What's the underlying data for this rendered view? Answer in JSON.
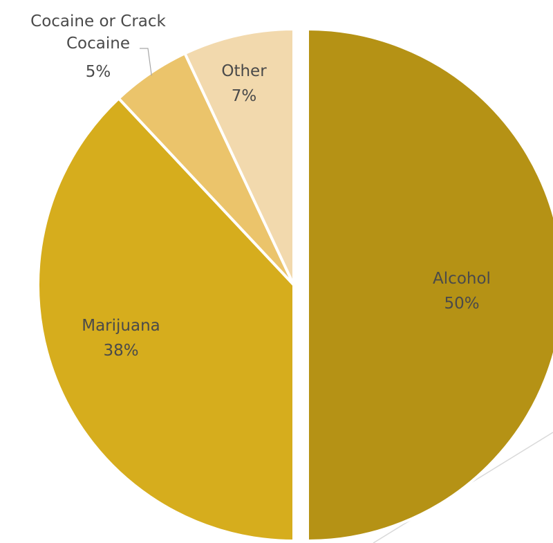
{
  "chart_data": {
    "type": "pie",
    "title": "",
    "start_angle_deg": 0,
    "direction": "clockwise",
    "slices": [
      {
        "label": "Alcohol",
        "value": 50,
        "value_label": "50%",
        "color": "#b59215",
        "exploded": true
      },
      {
        "label": "Marijuana",
        "value": 38,
        "value_label": "38%",
        "color": "#d6ad1d",
        "exploded": false
      },
      {
        "label": "Cocaine or Crack Cocaine",
        "label_lines": [
          "Cocaine or Crack",
          "Cocaine"
        ],
        "value": 5,
        "value_label": "5%",
        "color": "#ebc46b",
        "exploded": false
      },
      {
        "label": "Other",
        "value": 7,
        "value_label": "7%",
        "color": "#f2d9ad",
        "exploded": false
      }
    ]
  }
}
